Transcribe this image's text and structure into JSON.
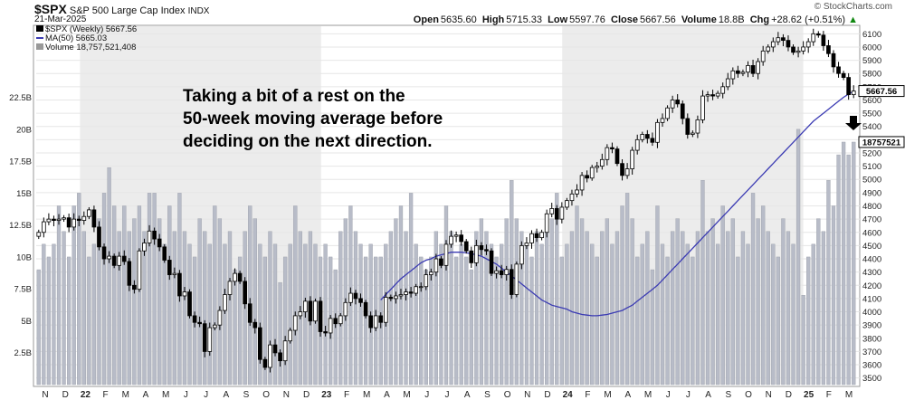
{
  "header": {
    "symbol": "$SPX",
    "name": "S&P 500 Large Cap Index",
    "exchange": "INDX",
    "date": "21-Mar-2025",
    "watermark": "© StockCharts.com",
    "quote": {
      "open_label": "Open",
      "open": "5635.60",
      "high_label": "High",
      "high": "5715.33",
      "low_label": "Low",
      "low": "5597.76",
      "close_label": "Close",
      "close": "5667.56",
      "volume_label": "Volume",
      "volume": "18.8B",
      "chg_label": "Chg",
      "chg": "+28.62 (+0.51%)",
      "chg_arrow": "▲"
    }
  },
  "legend": {
    "price": "$SPX (Weekly) 5667.56",
    "ma": "MA(50) 5665.03",
    "volume": "Volume 18,757,521,408"
  },
  "annotation": {
    "line1": "Taking a bit of a rest on the",
    "line2": "50-week moving average before",
    "line3": "deciding on the next direction."
  },
  "colors": {
    "up": "#ffffff",
    "down": "#000000",
    "ma": "#3b3bb3",
    "volume": "#b8bcc8",
    "shade": "#ececec"
  },
  "chart_data": {
    "type": "candlestick",
    "title": "$SPX S&P 500 Large Cap Index INDX",
    "price_axis": {
      "min": 3450,
      "max": 6150,
      "ticks": [
        3500,
        3600,
        3700,
        3800,
        3900,
        4000,
        4100,
        4200,
        4300,
        4400,
        4500,
        4600,
        4700,
        4800,
        4900,
        5000,
        5100,
        5200,
        5300,
        5400,
        5500,
        5600,
        5700,
        5800,
        5900,
        6000,
        6100
      ]
    },
    "volume_axis": {
      "max": 28,
      "ticks": [
        2.5,
        5.0,
        7.5,
        10.0,
        12.5,
        15.0,
        17.5,
        20.0,
        22.5
      ],
      "suffix": "B"
    },
    "last_price_label": "5667.56",
    "last_volume_label": "18757521",
    "x_labels": [
      "N",
      "D",
      "22",
      "F",
      "M",
      "A",
      "M",
      "J",
      "J",
      "A",
      "S",
      "O",
      "N",
      "D",
      "23",
      "F",
      "M",
      "A",
      "M",
      "J",
      "J",
      "A",
      "S",
      "O",
      "N",
      "D",
      "24",
      "F",
      "M",
      "A",
      "M",
      "J",
      "J",
      "A",
      "S",
      "O",
      "N",
      "D",
      "25",
      "F",
      "M"
    ],
    "shaded_years": [
      "22",
      "24"
    ],
    "close": [
      4600,
      4680,
      4700,
      4690,
      4700,
      4710,
      4640,
      4700,
      4690,
      4720,
      4770,
      4640,
      4490,
      4400,
      4420,
      4350,
      4420,
      4380,
      4200,
      4170,
      4460,
      4520,
      4610,
      4550,
      4490,
      4390,
      4280,
      4290,
      4120,
      4150,
      3970,
      3920,
      3910,
      3700,
      3880,
      3900,
      4010,
      4130,
      4230,
      4290,
      4230,
      4060,
      3920,
      3880,
      3640,
      3580,
      3750,
      3690,
      3630,
      3780,
      3860,
      3970,
      4000,
      4080,
      3930,
      4080,
      3850,
      3840,
      3950,
      3910,
      3970,
      4070,
      4140,
      4100,
      4070,
      3970,
      3880,
      3970,
      3920,
      4110,
      4100,
      4120,
      4130,
      4150,
      4140,
      4190,
      4190,
      4280,
      4300,
      4400,
      4350,
      4510,
      4570,
      4580,
      4530,
      4460,
      4370,
      4500,
      4470,
      4460,
      4290,
      4310,
      4280,
      4320,
      4130,
      4360,
      4500,
      4520,
      4590,
      4560,
      4600,
      4740,
      4780,
      4700,
      4790,
      4840,
      4890,
      4920,
      5030,
      5010,
      5090,
      5100,
      5150,
      5240,
      5230,
      5120,
      5030,
      5080,
      5220,
      5300,
      5340,
      5310,
      5280,
      5430,
      5460,
      5540,
      5600,
      5570,
      5460,
      5340,
      5350,
      5450,
      5630,
      5640,
      5630,
      5650,
      5700,
      5760,
      5820,
      5800,
      5810,
      5860,
      5800,
      5890,
      5970,
      6000,
      6040,
      6070,
      6050,
      6000,
      5960,
      5970,
      6000,
      6040,
      6100,
      6090,
      6010,
      5950,
      5850,
      5800,
      5770,
      5640,
      5667.56
    ],
    "volume": [
      9,
      11,
      10,
      11,
      14,
      12,
      10,
      14,
      15,
      12,
      10,
      11,
      13,
      15,
      17,
      14,
      12,
      14,
      12,
      13,
      14,
      12,
      15,
      15,
      13,
      11,
      14,
      12,
      15,
      12,
      11,
      10,
      13,
      12,
      11,
      14,
      13,
      11,
      12,
      9,
      10,
      12,
      14,
      13,
      11,
      10,
      12,
      11,
      8,
      10,
      11,
      14,
      12,
      11,
      12,
      11,
      10,
      11,
      10,
      9,
      12,
      13,
      14,
      12,
      11,
      10,
      11,
      10,
      10,
      11,
      12,
      13,
      14,
      12,
      15,
      11,
      10,
      9,
      10,
      12,
      11,
      14,
      12,
      10,
      11,
      10,
      9,
      12,
      13,
      12,
      11,
      10,
      11,
      13,
      16,
      13,
      12,
      11,
      10,
      12,
      11,
      12,
      13,
      15,
      10,
      11,
      12,
      14,
      13,
      12,
      11,
      10,
      12,
      13,
      11,
      12,
      14,
      15,
      13,
      10,
      11,
      12,
      9,
      14,
      11,
      10,
      12,
      13,
      12,
      11,
      10,
      12,
      16,
      12,
      13,
      11,
      14,
      12,
      13,
      10,
      12,
      11,
      15,
      13,
      14,
      12,
      11,
      10,
      13,
      12,
      11,
      20,
      7,
      10,
      11,
      13,
      12,
      16,
      14,
      18,
      19,
      18,
      19
    ],
    "ma50": [
      4090,
      4130,
      4170,
      4210,
      4250,
      4280,
      4310,
      4340,
      4370,
      4390,
      4400,
      4420,
      4430,
      4440,
      4450,
      4450,
      4450,
      4445,
      4440,
      4430,
      4420,
      4400,
      4380,
      4360,
      4330,
      4300,
      4270,
      4240,
      4210,
      4180,
      4150,
      4120,
      4090,
      4070,
      4050,
      4040,
      4030,
      4020,
      4000,
      3990,
      3980,
      3975,
      3970,
      3970,
      3975,
      3980,
      3990,
      4000,
      4010,
      4030,
      4050,
      4080,
      4110,
      4140,
      4170,
      4200,
      4240,
      4280,
      4320,
      4360,
      4400,
      4440,
      4480,
      4520,
      4560,
      4600,
      4640,
      4680,
      4720,
      4760,
      4800,
      4840,
      4880,
      4920,
      4960,
      5000,
      5040,
      5080,
      5120,
      5160,
      5200,
      5240,
      5280,
      5320,
      5360,
      5400,
      5440,
      5470,
      5500,
      5530,
      5560,
      5590,
      5620,
      5645,
      5665.03
    ]
  }
}
